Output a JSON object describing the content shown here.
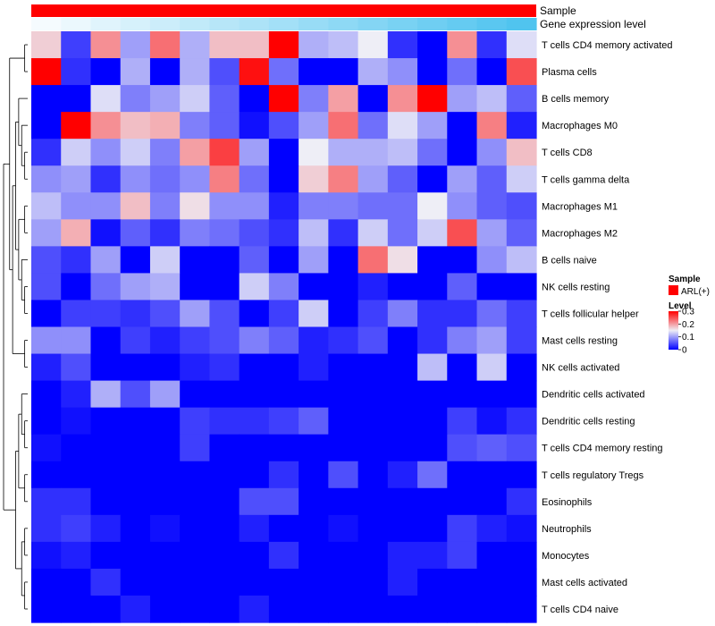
{
  "chart_data": {
    "type": "heatmap",
    "annotation_labels": {
      "sample": "Sample",
      "gene_expression": "Gene expression level"
    },
    "annotation_colors": {
      "sample": "#ff0000",
      "gene_expression_low": "#f5fbfe",
      "gene_expression_high": "#50c4ef"
    },
    "legend": {
      "sample_title": "Sample",
      "sample_entry": "ARL(+)",
      "level_title": "Level",
      "ticks": [
        0.3,
        0.2,
        0.1,
        0
      ]
    },
    "color_scale": {
      "low": "#0000ff",
      "mid": "#eeeef6",
      "high": "#ff0000",
      "min": 0,
      "mid_value": 0.15,
      "max": 0.3
    },
    "rows": [
      "T cells CD4 memory activated",
      "Plasma cells",
      "B cells memory",
      "Macrophages M0",
      "T cells CD8",
      "T cells gamma delta",
      "Macrophages M1",
      "Macrophages M2",
      "B cells naive",
      "NK cells resting",
      "T cells follicular helper",
      "Mast cells resting",
      "NK cells activated",
      "Dendritic cells activated",
      "Dendritic cells resting",
      "T cells CD4 memory resting",
      "T cells regulatory  Tregs",
      "Eosinophils",
      "Neutrophils",
      "Monocytes",
      "Mast cells activated",
      "T cells CD4 naive"
    ],
    "values": [
      [
        0.17,
        0.04,
        0.21,
        0.1,
        0.23,
        0.11,
        0.18,
        0.18,
        0.3,
        0.11,
        0.12,
        0.15,
        0.03,
        0.0,
        0.21,
        0.03,
        0.14
      ],
      [
        0.3,
        0.03,
        0.0,
        0.11,
        0.0,
        0.11,
        0.05,
        0.29,
        0.07,
        0.0,
        0.0,
        0.11,
        0.09,
        0.0,
        0.07,
        0.0,
        0.25
      ],
      [
        0.0,
        0.0,
        0.14,
        0.08,
        0.1,
        0.13,
        0.06,
        0.0,
        0.3,
        0.08,
        0.2,
        0.0,
        0.21,
        0.3,
        0.1,
        0.12,
        0.06
      ],
      [
        0.0,
        0.3,
        0.21,
        0.18,
        0.19,
        0.08,
        0.06,
        0.01,
        0.05,
        0.1,
        0.23,
        0.07,
        0.14,
        0.1,
        0.0,
        0.22,
        0.02
      ],
      [
        0.03,
        0.13,
        0.09,
        0.13,
        0.08,
        0.2,
        0.26,
        0.1,
        0.0,
        0.15,
        0.11,
        0.11,
        0.12,
        0.07,
        0.0,
        0.09,
        0.18
      ],
      [
        0.09,
        0.1,
        0.03,
        0.09,
        0.07,
        0.09,
        0.22,
        0.07,
        0.0,
        0.17,
        0.22,
        0.1,
        0.06,
        0.0,
        0.1,
        0.06,
        0.13
      ],
      [
        0.12,
        0.09,
        0.09,
        0.18,
        0.08,
        0.16,
        0.09,
        0.09,
        0.02,
        0.08,
        0.08,
        0.07,
        0.07,
        0.15,
        0.09,
        0.06,
        0.05
      ],
      [
        0.1,
        0.19,
        0.01,
        0.06,
        0.03,
        0.08,
        0.07,
        0.05,
        0.03,
        0.12,
        0.03,
        0.13,
        0.07,
        0.13,
        0.25,
        0.1,
        0.06
      ],
      [
        0.05,
        0.03,
        0.1,
        0.0,
        0.13,
        0.0,
        0.0,
        0.06,
        0.0,
        0.1,
        0.0,
        0.23,
        0.16,
        0.0,
        0.0,
        0.09,
        0.12
      ],
      [
        0.05,
        0.0,
        0.07,
        0.1,
        0.11,
        0.0,
        0.0,
        0.13,
        0.08,
        0.0,
        0.0,
        0.02,
        0.0,
        0.0,
        0.06,
        0.0,
        0.0
      ],
      [
        0.0,
        0.04,
        0.04,
        0.03,
        0.05,
        0.1,
        0.05,
        0.0,
        0.04,
        0.13,
        0.0,
        0.04,
        0.08,
        0.03,
        0.03,
        0.07,
        0.04
      ],
      [
        0.09,
        0.09,
        0.0,
        0.04,
        0.02,
        0.04,
        0.05,
        0.08,
        0.06,
        0.02,
        0.03,
        0.05,
        0.0,
        0.03,
        0.08,
        0.1,
        0.04
      ],
      [
        0.02,
        0.05,
        0.0,
        0.0,
        0.0,
        0.02,
        0.03,
        0.0,
        0.0,
        0.02,
        0.0,
        0.0,
        0.0,
        0.12,
        0.0,
        0.13,
        0.0
      ],
      [
        0.0,
        0.02,
        0.11,
        0.05,
        0.1,
        0.0,
        0.0,
        0.0,
        0.0,
        0.0,
        0.0,
        0.0,
        0.0,
        0.0,
        0.0,
        0.0,
        0.0
      ],
      [
        0.0,
        0.01,
        0.0,
        0.0,
        0.0,
        0.04,
        0.03,
        0.03,
        0.04,
        0.06,
        0.0,
        0.0,
        0.0,
        0.0,
        0.04,
        0.01,
        0.03
      ],
      [
        0.01,
        0.0,
        0.0,
        0.0,
        0.0,
        0.04,
        0.0,
        0.0,
        0.0,
        0.0,
        0.0,
        0.0,
        0.0,
        0.0,
        0.05,
        0.06,
        0.05
      ],
      [
        0.0,
        0.0,
        0.0,
        0.0,
        0.0,
        0.0,
        0.0,
        0.0,
        0.03,
        0.0,
        0.05,
        0.0,
        0.02,
        0.07,
        0.0,
        0.0,
        0.0
      ],
      [
        0.03,
        0.03,
        0.0,
        0.0,
        0.0,
        0.0,
        0.0,
        0.05,
        0.05,
        0.0,
        0.0,
        0.0,
        0.0,
        0.0,
        0.0,
        0.0,
        0.03
      ],
      [
        0.03,
        0.04,
        0.02,
        0.0,
        0.01,
        0.0,
        0.0,
        0.02,
        0.0,
        0.0,
        0.01,
        0.0,
        0.0,
        0.0,
        0.04,
        0.02,
        0.01
      ],
      [
        0.01,
        0.02,
        0.0,
        0.0,
        0.0,
        0.0,
        0.0,
        0.0,
        0.03,
        0.0,
        0.0,
        0.0,
        0.02,
        0.02,
        0.04,
        0.0,
        0.0
      ],
      [
        0.0,
        0.0,
        0.03,
        0.0,
        0.0,
        0.0,
        0.0,
        0.0,
        0.0,
        0.0,
        0.0,
        0.0,
        0.02,
        0.0,
        0.0,
        0.0,
        0.0
      ],
      [
        0.0,
        0.0,
        0.0,
        0.02,
        0.0,
        0.0,
        0.0,
        0.02,
        0.0,
        0.0,
        0.0,
        0.0,
        0.0,
        0.0,
        0.0,
        0.0,
        0.0
      ]
    ]
  }
}
